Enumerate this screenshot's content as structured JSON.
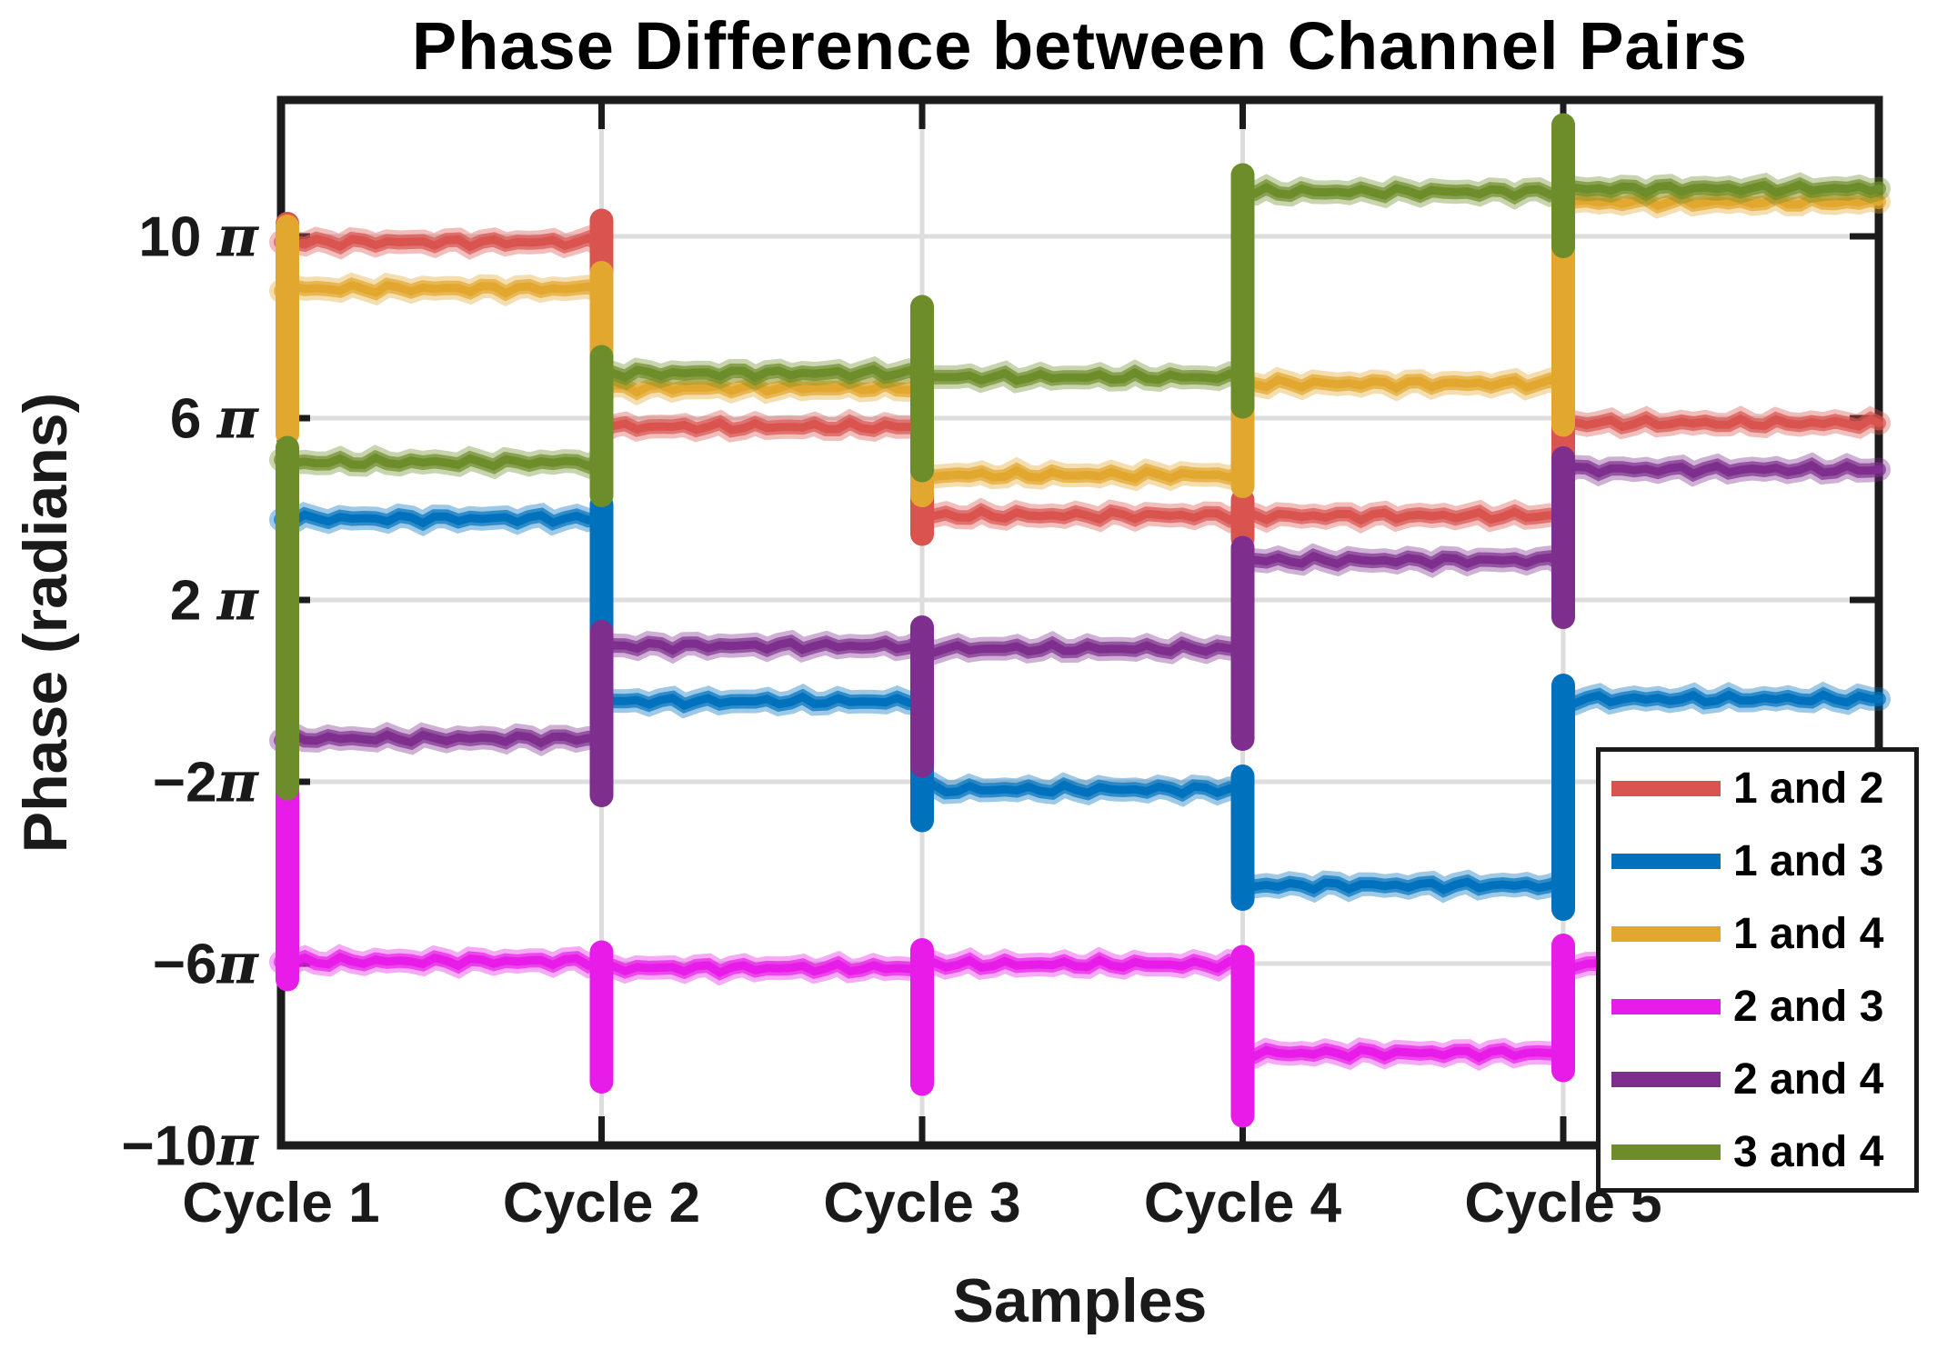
{
  "figure": {
    "title": "Phase Difference between Channel Pairs",
    "xlabel": "Samples",
    "ylabel": "Phase (radians)",
    "background_color": "#FFFFFF",
    "frame_color": "#1C1C1C",
    "grid_color": "#DDDDDD",
    "text_color": "#000000"
  },
  "chart_data": {
    "type": "line",
    "subtype": "step-plateaus-with-transition-ringing",
    "title": "Phase Difference between Channel Pairs",
    "xlabel": "Samples",
    "ylabel": "Phase (radians)",
    "grid": true,
    "legend_position": "lower right, overhanging axes frame",
    "categories": [
      "Cycle 1",
      "Cycle 2",
      "Cycle 3",
      "Cycle 4",
      "Cycle 5"
    ],
    "x_tick_positions_cycles": [
      0,
      1,
      2,
      3,
      4
    ],
    "x_range_cycles": [
      0,
      4.985
    ],
    "y_unit": "pi radians",
    "y_range_pi": [
      -10,
      13
    ],
    "y_ticks": [
      {
        "v": 10,
        "label": "10 π"
      },
      {
        "v": 6,
        "label": "6 π"
      },
      {
        "v": 2,
        "label": "2 π"
      },
      {
        "v": -2,
        "label": "−2π"
      },
      {
        "v": -6,
        "label": "−6π"
      },
      {
        "v": -10,
        "label": "−10π"
      }
    ],
    "series": [
      {
        "name": "1 and 2",
        "color": "#D9534F",
        "values_pi": [
          9.87,
          5.81,
          3.86,
          3.85,
          5.89
        ],
        "start_transient_pi": [
          9.55,
          10.28
        ],
        "transition_spikes_pi": [
          [
            5.3,
            10.35
          ],
          [
            3.45,
            6.1
          ],
          [
            3.35,
            4.2
          ],
          [
            3.08,
            6.2
          ]
        ]
      },
      {
        "name": "1 and 3",
        "color": "#0072BD",
        "values_pi": [
          3.79,
          -0.23,
          -2.17,
          -4.28,
          -0.18
        ],
        "start_transient_pi": [
          3.35,
          4.15
        ],
        "transition_spikes_pi": [
          [
            -1.05,
            4.1
          ],
          [
            -2.85,
            0.1
          ],
          [
            -4.58,
            -1.88
          ],
          [
            -4.8,
            0.12
          ]
        ]
      },
      {
        "name": "1 and 4",
        "color": "#E2A72E",
        "values_pi": [
          8.85,
          6.67,
          4.75,
          6.76,
          10.76
        ],
        "start_transient_pi": [
          5.65,
          10.22
        ],
        "transition_spikes_pi": [
          [
            6.25,
            9.2
          ],
          [
            4.3,
            7.0
          ],
          [
            4.5,
            7.1
          ],
          [
            5.85,
            11.05
          ]
        ]
      },
      {
        "name": "2 and 3",
        "color": "#E81CE8",
        "values_pi": [
          -5.95,
          -6.1,
          -6.02,
          -7.97,
          -6.04
        ],
        "start_transient_pi": [
          -6.35,
          -1.8
        ],
        "transition_spikes_pi": [
          [
            -8.6,
            -5.75
          ],
          [
            -8.65,
            -5.7
          ],
          [
            -9.35,
            -5.85
          ],
          [
            -8.35,
            -5.6
          ]
        ]
      },
      {
        "name": "2 and 4",
        "color": "#7E2F8E",
        "values_pi": [
          -1.05,
          0.99,
          0.93,
          2.87,
          4.87
        ],
        "start_transient_pi": [
          -1.95,
          -0.75
        ],
        "transition_spikes_pi": [
          [
            -2.3,
            1.3
          ],
          [
            -1.65,
            1.4
          ],
          [
            -1.06,
            3.15
          ],
          [
            1.62,
            5.12
          ]
        ]
      },
      {
        "name": "3 and 4",
        "color": "#6D8D2A",
        "values_pi": [
          5.03,
          6.99,
          6.9,
          10.98,
          11.05
        ],
        "start_transient_pi": [
          -2.15,
          5.35
        ],
        "transition_spikes_pi": [
          [
            4.3,
            7.35
          ],
          [
            4.85,
            8.45
          ],
          [
            6.25,
            11.35
          ],
          [
            9.78,
            12.45
          ]
        ]
      }
    ]
  },
  "legend": {
    "items": [
      {
        "label": "1 and 2",
        "color": "#D9534F"
      },
      {
        "label": "1 and 3",
        "color": "#0072BD"
      },
      {
        "label": "1 and 4",
        "color": "#E2A72E"
      },
      {
        "label": "2 and 3",
        "color": "#E81CE8"
      },
      {
        "label": "2 and 4",
        "color": "#7E2F8E"
      },
      {
        "label": "3 and 4",
        "color": "#6D8D2A"
      }
    ]
  }
}
